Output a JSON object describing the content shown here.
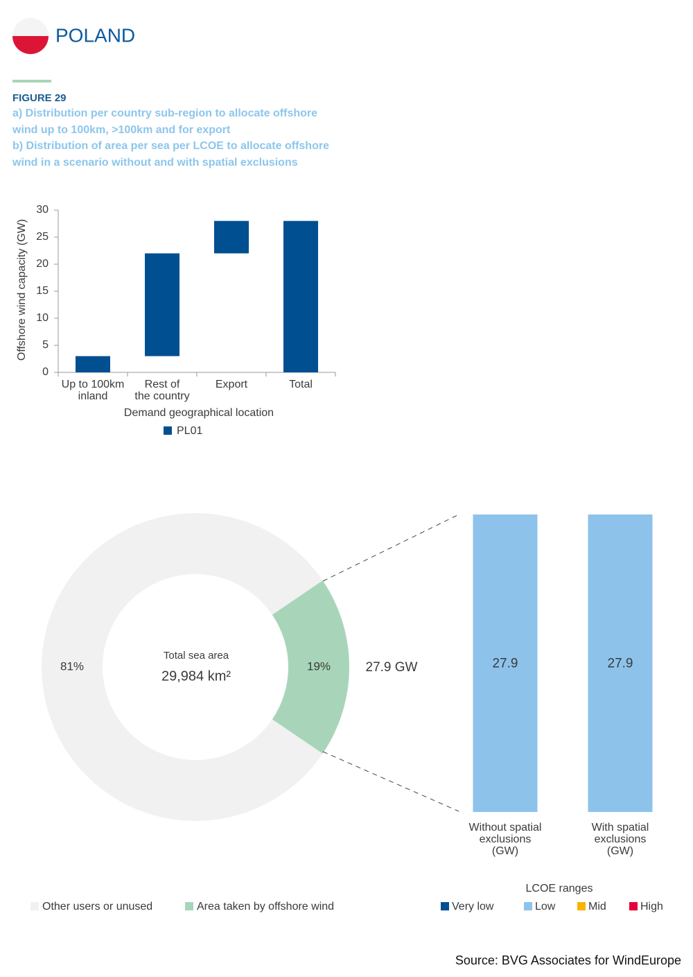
{
  "header": {
    "country": "POLAND"
  },
  "figure": {
    "label": "FIGURE 29",
    "caption": [
      "a) Distribution per country sub-region to allocate offshore wind up to 100km, >100km and for export",
      "b) Distribution of area per sea per LCOE to allocate offshore wind in a scenario without and with spatial exclusions"
    ]
  },
  "chart_data": [
    {
      "type": "waterfall",
      "categories": [
        "Up to 100km\ninland",
        "Rest of\nthe country",
        "Export",
        "Total"
      ],
      "series": [
        {
          "name": "PL01",
          "color": "#004f91",
          "values": [
            3,
            19,
            6,
            28
          ]
        }
      ],
      "ylabel": "Offshore wind capacity (GW)",
      "xlabel": "Demand geographical location",
      "ylim": [
        0,
        30
      ],
      "yticks": [
        0,
        5,
        10,
        15,
        20,
        25,
        30
      ]
    },
    {
      "type": "donut",
      "categories": [
        "Other users or unused",
        "Area taken by offshore wind"
      ],
      "values": [
        81,
        19
      ],
      "value_labels": [
        "81%",
        "19%"
      ],
      "colors": [
        "#f1f1f1",
        "#a8d5b9"
      ],
      "center_label": "Total sea area",
      "center_value": "29,984 km²",
      "annotation": "27.9 GW"
    },
    {
      "type": "stacked_bar",
      "categories": [
        "Without spatial\nexclusions\n(GW)",
        "With spatial\nexclusions\n(GW)"
      ],
      "legend_title": "LCOE ranges",
      "series": [
        {
          "name": "Very low",
          "color": "#004f91",
          "values": [
            0,
            0
          ]
        },
        {
          "name": "Low",
          "color": "#8dc3eb",
          "values": [
            27.9,
            27.9
          ]
        },
        {
          "name": "Mid",
          "color": "#f7b500",
          "values": [
            0,
            0
          ]
        },
        {
          "name": "High",
          "color": "#e4003a",
          "values": [
            0,
            0
          ]
        }
      ]
    }
  ],
  "source": "Source: BVG Associates for WindEurope"
}
